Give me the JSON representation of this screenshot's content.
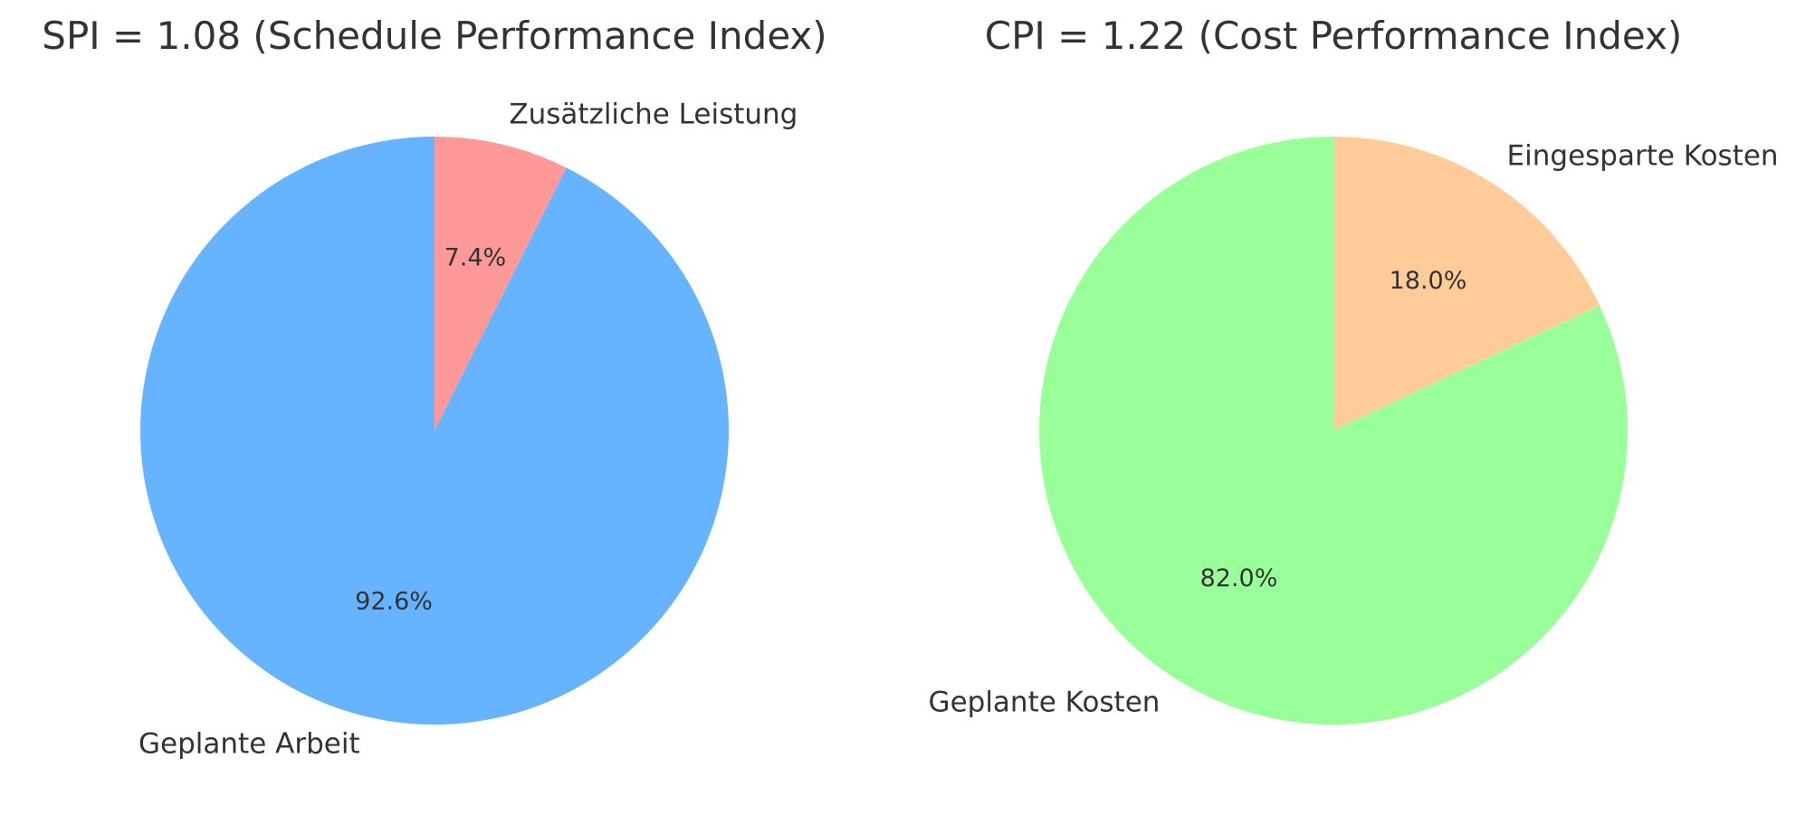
{
  "chart_data": [
    {
      "type": "pie",
      "title": "SPI = 1.08 (Schedule Performance Index)",
      "start_angle_deg": 90,
      "direction": "clockwise",
      "slices": [
        {
          "label": "Zusätzliche Leistung",
          "value": 7.4,
          "pct_label": "7.4%",
          "color": "#ff9999"
        },
        {
          "label": "Geplante Arbeit",
          "value": 92.6,
          "pct_label": "92.6%",
          "color": "#66b3ff"
        }
      ]
    },
    {
      "type": "pie",
      "title": "CPI = 1.22 (Cost Performance Index)",
      "start_angle_deg": 90,
      "direction": "clockwise",
      "slices": [
        {
          "label": "Eingesparte Kosten",
          "value": 18.0,
          "pct_label": "18.0%",
          "color": "#ffcc99"
        },
        {
          "label": "Geplante Kosten",
          "value": 82.0,
          "pct_label": "82.0%",
          "color": "#99ff99"
        }
      ]
    }
  ]
}
